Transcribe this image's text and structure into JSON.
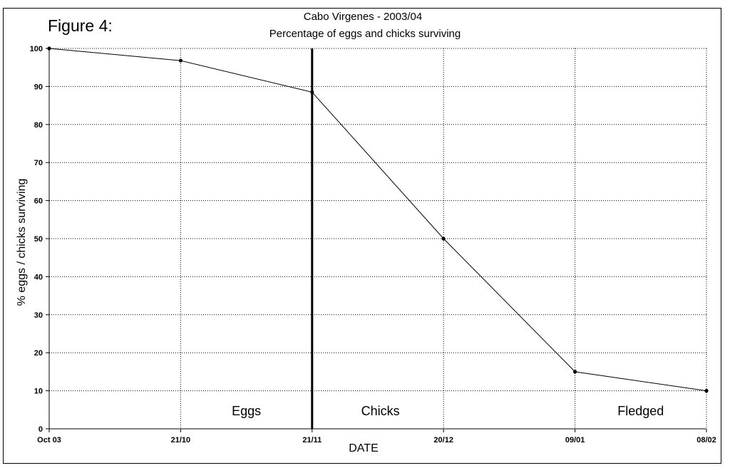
{
  "figure_label": "Figure 4:",
  "chart_data": {
    "type": "line",
    "title": "Cabo Virgenes - 2003/04",
    "subtitle": "Percentage of eggs and chicks surviving",
    "xlabel": "DATE",
    "ylabel": "% eggs / chicks surviving",
    "categories": [
      "Oct 03",
      "21/10",
      "21/11",
      "20/12",
      "09/01",
      "08/02"
    ],
    "series": [
      {
        "values": [
          100,
          96.8,
          88.5,
          50,
          15,
          10
        ]
      }
    ],
    "ylim": [
      0,
      100
    ],
    "yticks": [
      0,
      10,
      20,
      30,
      40,
      50,
      60,
      70,
      80,
      90,
      100
    ],
    "grid": true,
    "stage_divider_at": "21/11",
    "regions": [
      {
        "label": "Eggs",
        "x": 1.5
      },
      {
        "label": "Chicks",
        "x": 2.52
      },
      {
        "label": "Fledged",
        "x": 4.5
      }
    ]
  }
}
